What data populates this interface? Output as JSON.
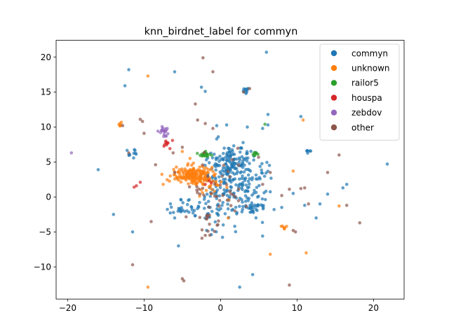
{
  "chart_data": {
    "type": "scatter",
    "title": "knn_birdnet_label for commyn",
    "xlabel": "",
    "ylabel": "",
    "xlim": [
      -21.5,
      24
    ],
    "ylim": [
      -14.6,
      22.4
    ],
    "xticks": [
      -20,
      -10,
      0,
      10,
      20
    ],
    "yticks": [
      -10,
      -5,
      0,
      5,
      10,
      15,
      20
    ],
    "grid": false,
    "legend_position": "top-right",
    "series": [
      {
        "name": "commyn",
        "color": "#1f77b4",
        "clusters": [
          {
            "cx": 1.5,
            "cy": 5.2,
            "sx": 1.4,
            "sy": 1.0,
            "n": 110
          },
          {
            "cx": 0.5,
            "cy": 0.5,
            "sx": 2.2,
            "sy": 2.6,
            "n": 150
          },
          {
            "cx": 3.5,
            "cy": 2.0,
            "sx": 1.6,
            "sy": 1.8,
            "n": 60
          },
          {
            "cx": 4.5,
            "cy": -1.5,
            "sx": 1.0,
            "sy": 0.5,
            "n": 30
          },
          {
            "cx": -4.5,
            "cy": -1.5,
            "sx": 1.2,
            "sy": 0.8,
            "n": 25
          },
          {
            "cx": 3.3,
            "cy": 15.3,
            "sx": 0.25,
            "sy": 0.3,
            "n": 10
          },
          {
            "cx": -11.5,
            "cy": 6.2,
            "sx": 0.5,
            "sy": 0.4,
            "n": 10
          },
          {
            "cx": 11.5,
            "cy": 6.5,
            "sx": 0.2,
            "sy": 0.2,
            "n": 6
          }
        ],
        "points": [
          [
            6.0,
            20.7
          ],
          [
            -12.5,
            15.9
          ],
          [
            -6.0,
            17.9
          ],
          [
            -2.5,
            15.7
          ],
          [
            -12.0,
            18.2
          ],
          [
            -16.0,
            3.9
          ],
          [
            -14.0,
            -2.5
          ],
          [
            -11.5,
            -5.0
          ],
          [
            -6.0,
            -3.0
          ],
          [
            -5.5,
            -7.0
          ],
          [
            -2.0,
            15.1
          ],
          [
            -0.5,
            8.3
          ],
          [
            6.2,
            11.8
          ],
          [
            10.5,
            11.5
          ],
          [
            12.5,
            -3.0
          ],
          [
            13.0,
            -1.0
          ],
          [
            16.5,
            1.8
          ],
          [
            16.0,
            1.3
          ],
          [
            21.8,
            4.7
          ],
          [
            2.5,
            -12.9
          ],
          [
            4.2,
            -11.1
          ],
          [
            5.5,
            -5.6
          ],
          [
            9.5,
            0.5
          ],
          [
            11.0,
            -1.2
          ],
          [
            14.0,
            0.4
          ],
          [
            8.0,
            -1.5
          ],
          [
            7.0,
            -1.8
          ],
          [
            5.5,
            9.8
          ],
          [
            3.5,
            10.0
          ],
          [
            0.8,
            10.3
          ],
          [
            -0.5,
            10.2
          ],
          [
            6.2,
            10.3
          ]
        ]
      },
      {
        "name": "unknown",
        "color": "#ff7f0e",
        "clusters": [
          {
            "cx": -3.5,
            "cy": 3.1,
            "sx": 1.4,
            "sy": 0.6,
            "n": 180
          },
          {
            "cx": -1.5,
            "cy": 1.5,
            "sx": 1.0,
            "sy": 1.0,
            "n": 30
          },
          {
            "cx": -13.0,
            "cy": 10.3,
            "sx": 0.2,
            "sy": 0.2,
            "n": 6
          },
          {
            "cx": 8.2,
            "cy": -4.3,
            "sx": 0.3,
            "sy": 0.2,
            "n": 6
          }
        ],
        "points": [
          [
            -9.5,
            17.3
          ],
          [
            -9.5,
            -12.9
          ],
          [
            -4.0,
            5.5
          ],
          [
            -5.0,
            6.5
          ],
          [
            10.8,
            11.0
          ],
          [
            9.5,
            3.7
          ],
          [
            15.5,
            -1.3
          ],
          [
            6.5,
            -8.2
          ],
          [
            11.2,
            -8.0
          ],
          [
            -7.5,
            1.8
          ],
          [
            1.0,
            -3.0
          ]
        ]
      },
      {
        "name": "railor5",
        "color": "#2ca02c",
        "clusters": [
          {
            "cx": -2.0,
            "cy": 6.1,
            "sx": 0.45,
            "sy": 0.25,
            "n": 22
          },
          {
            "cx": 4.5,
            "cy": 6.1,
            "sx": 0.3,
            "sy": 0.15,
            "n": 8
          }
        ],
        "points": [
          [
            5.8,
            10.4
          ]
        ]
      },
      {
        "name": "houspa",
        "color": "#d62728",
        "clusters": [
          {
            "cx": -7.0,
            "cy": 7.6,
            "sx": 0.25,
            "sy": 0.5,
            "n": 10
          }
        ],
        "points": [
          [
            -11.3,
            1.4
          ],
          [
            -11.0,
            1.6
          ],
          [
            -10.5,
            2.1
          ],
          [
            -1.5,
            2.3
          ],
          [
            -1.2,
            2.0
          ],
          [
            -2.0,
            1.8
          ]
        ]
      },
      {
        "name": "zebdov",
        "color": "#9467bd",
        "clusters": [
          {
            "cx": -7.4,
            "cy": 9.3,
            "sx": 0.3,
            "sy": 0.4,
            "n": 18
          }
        ],
        "points": [
          [
            -19.5,
            6.3
          ],
          [
            -7.1,
            8.7
          ]
        ]
      },
      {
        "name": "other",
        "color": "#8c564b",
        "clusters": [
          {
            "cx": -1.0,
            "cy": 1.0,
            "sx": 2.5,
            "sy": 2.5,
            "n": 45
          },
          {
            "cx": -1.5,
            "cy": -4.0,
            "sx": 0.7,
            "sy": 1.0,
            "n": 12
          }
        ],
        "points": [
          [
            -2.3,
            19.9
          ],
          [
            -1.0,
            17.9
          ],
          [
            -3.3,
            13.3
          ],
          [
            3.8,
            15.5
          ],
          [
            3.0,
            15.0
          ],
          [
            -10.5,
            11.1
          ],
          [
            -10.2,
            10.8
          ],
          [
            -12.8,
            10.2
          ],
          [
            -5.0,
            7.1
          ],
          [
            -6.2,
            6.3
          ],
          [
            -8.5,
            4.6
          ],
          [
            -12.0,
            6.3
          ],
          [
            -10.0,
            9.1
          ],
          [
            -4.8,
            -12.0
          ],
          [
            -5.0,
            -11.7
          ],
          [
            6.5,
            3.5
          ],
          [
            8.0,
            0.2
          ],
          [
            9.0,
            1.1
          ],
          [
            11.0,
            1.3
          ],
          [
            10.5,
            1.2
          ],
          [
            11.5,
            -1.0
          ],
          [
            9.5,
            -4.8
          ],
          [
            9.8,
            -5.0
          ],
          [
            16.5,
            -1.2
          ],
          [
            15.5,
            6.0
          ],
          [
            14.0,
            3.5
          ],
          [
            18.2,
            -3.7
          ],
          [
            5.5,
            1.8
          ],
          [
            -3.0,
            11.0
          ],
          [
            -2.0,
            10.5
          ],
          [
            -1.0,
            9.8
          ],
          [
            9.0,
            -12.6
          ],
          [
            -11.5,
            -9.7
          ],
          [
            -6.0,
            3.5
          ],
          [
            -2.0,
            -5.5
          ]
        ]
      }
    ]
  }
}
